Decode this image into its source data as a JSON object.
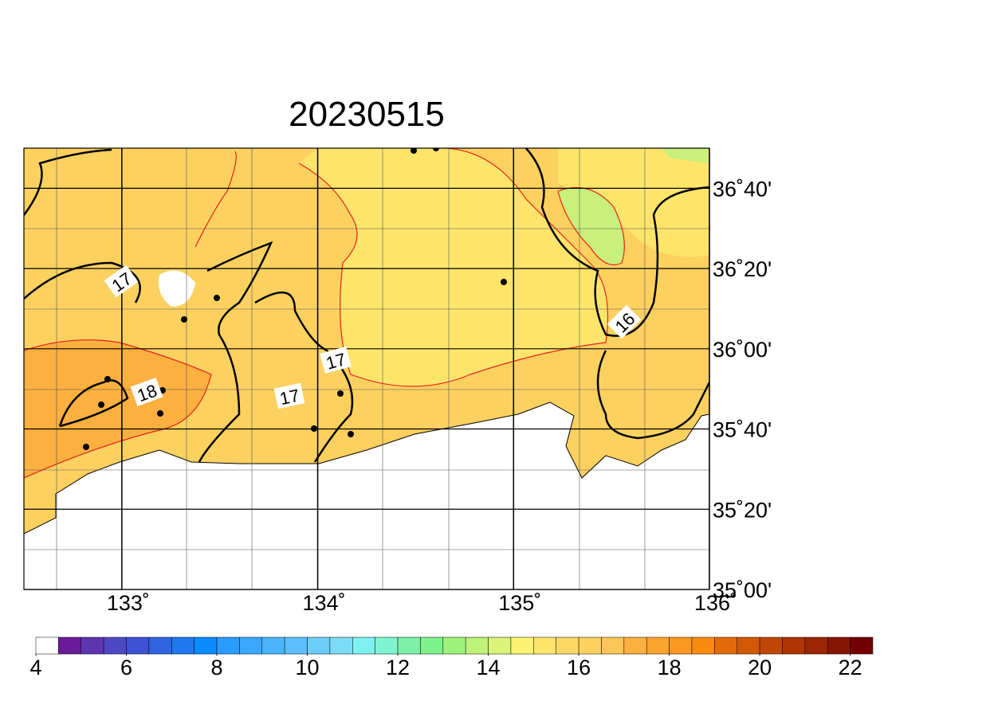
{
  "title": "20230515",
  "lon_axis": {
    "lim": [
      132.5,
      136
    ],
    "ticks": [
      {
        "value": 133,
        "label": "133˚"
      },
      {
        "value": 134,
        "label": "134˚"
      },
      {
        "value": 135,
        "label": "135˚"
      },
      {
        "value": 136,
        "label": "136˚"
      }
    ]
  },
  "lat_axis": {
    "lim": [
      35,
      36.8333
    ],
    "ticks": [
      {
        "value": 35,
        "label": "35˚00'"
      },
      {
        "value": 35.3333,
        "label": "35˚20'"
      },
      {
        "value": 35.6667,
        "label": "35˚40'"
      },
      {
        "value": 36,
        "label": "36˚00'"
      },
      {
        "value": 36.3333,
        "label": "36˚20'"
      },
      {
        "value": 36.6667,
        "label": "36˚40'"
      }
    ]
  },
  "contour_labels": [
    17,
    18,
    17,
    17,
    16
  ],
  "colorbar": {
    "lim": [
      4,
      22.5
    ],
    "ticks": [
      4,
      6,
      8,
      10,
      12,
      14,
      16,
      18,
      20,
      22
    ],
    "colors": [
      "#ffffff",
      "#6a1b9a",
      "#5e35b1",
      "#4e48c4",
      "#3f51d5",
      "#2f63e0",
      "#1e78ee",
      "#0a8cff",
      "#2a9cff",
      "#3aa8ff",
      "#4ab4ff",
      "#5cc0ff",
      "#6ccef8",
      "#7ddcf5",
      "#7ef0f0",
      "#7ef5d0",
      "#7ef0a8",
      "#7ef28a",
      "#9cf27a",
      "#bef27a",
      "#dcf47a",
      "#fcf470",
      "#fde56c",
      "#fdd866",
      "#fcd160",
      "#fcc557",
      "#fbb040",
      "#fba42e",
      "#fb9820",
      "#fa8a10",
      "#e26a08",
      "#d15806",
      "#bf4705",
      "#ad3604",
      "#9a2603",
      "#861602",
      "#730000"
    ]
  }
}
